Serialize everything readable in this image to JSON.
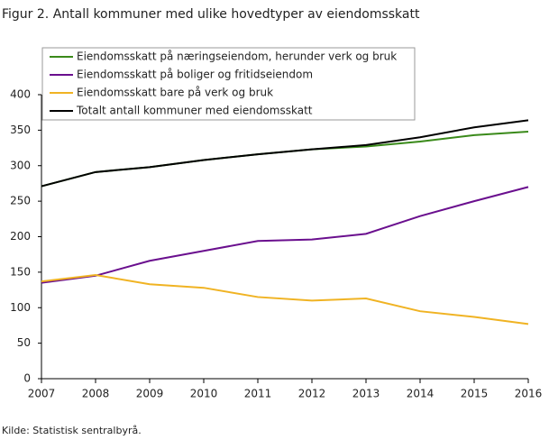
{
  "chart_data": {
    "type": "line",
    "title": "Figur 2. Antall kommuner med ulike hovedtyper av eiendomsskatt",
    "source": "Kilde: Statistisk sentralbyrå.",
    "x": [
      2007,
      2008,
      2009,
      2010,
      2011,
      2012,
      2013,
      2014,
      2015,
      2016
    ],
    "xlim": [
      2007,
      2016
    ],
    "xticks": [
      2007,
      2008,
      2009,
      2010,
      2011,
      2012,
      2013,
      2014,
      2015,
      2016
    ],
    "ylim": [
      0,
      400
    ],
    "yticks": [
      0,
      50,
      100,
      150,
      200,
      250,
      300,
      350,
      400
    ],
    "grid": false,
    "legend": "top-left",
    "series": [
      {
        "name": "Eiendomsskatt på næringseiendom, herunder verk og bruk",
        "color": "#3a8a1a",
        "values": [
          271,
          291,
          298,
          308,
          316,
          323,
          327,
          334,
          343,
          348
        ]
      },
      {
        "name": "Eiendomsskatt på boliger og fritidseiendom",
        "color": "#6a0f8e",
        "values": [
          135,
          145,
          166,
          180,
          194,
          196,
          204,
          229,
          250,
          270
        ]
      },
      {
        "name": "Eiendomsskatt bare på verk og bruk",
        "color": "#f0b323",
        "values": [
          137,
          146,
          133,
          128,
          115,
          110,
          113,
          95,
          87,
          77
        ]
      },
      {
        "name": "Totalt antall kommuner med eiendomsskatt",
        "color": "#000000",
        "values": [
          271,
          291,
          298,
          308,
          316,
          323,
          329,
          340,
          354,
          364
        ]
      }
    ]
  }
}
